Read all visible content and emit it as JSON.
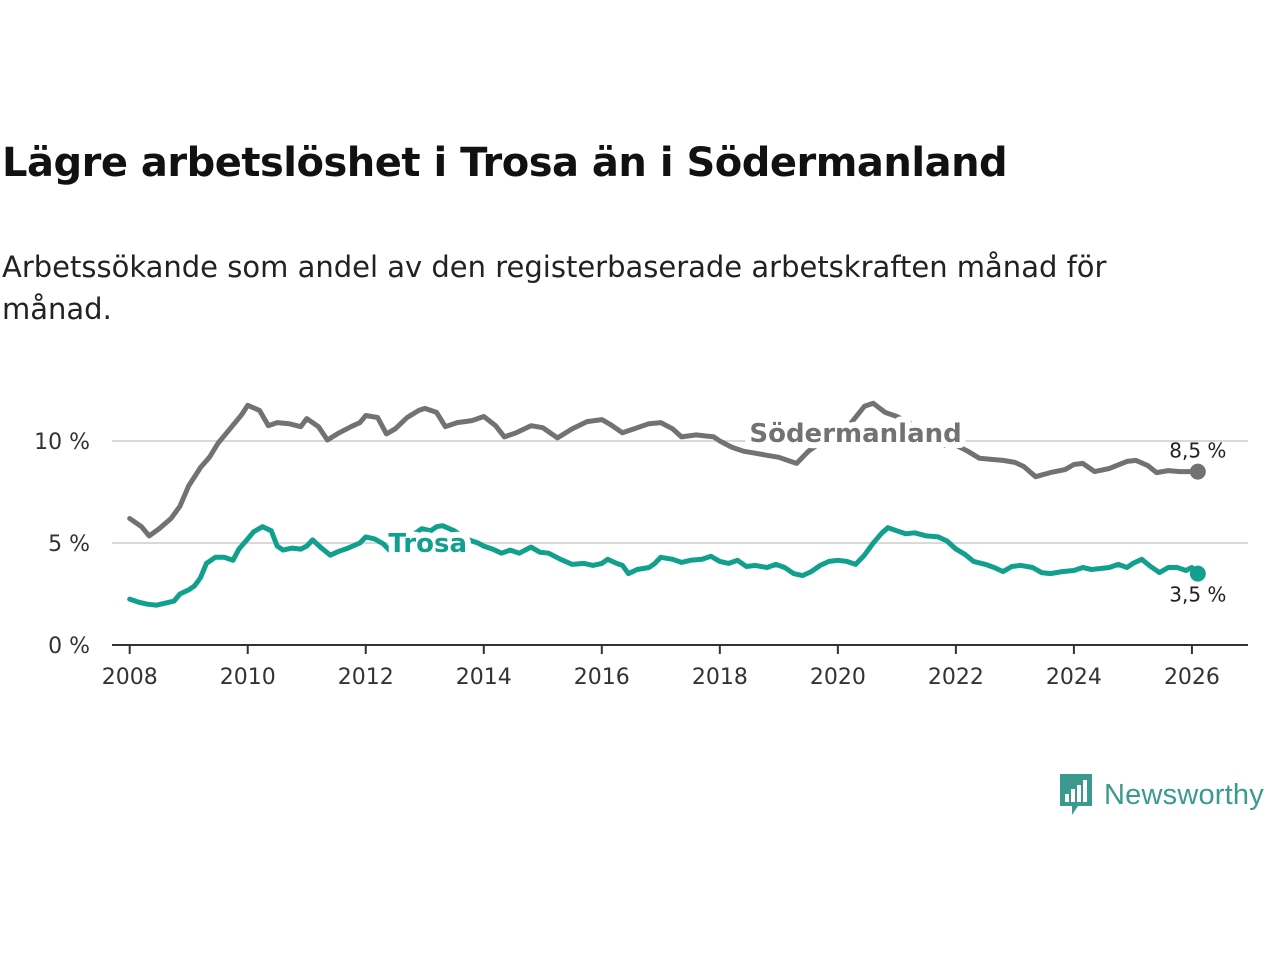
{
  "header": {
    "title": "Lägre arbetslöshet i Trosa än i Södermanland",
    "subtitle": "Arbetssökande som andel av den registerbaserade arbetskraften månad för månad."
  },
  "brand": {
    "name": "Newsworthy",
    "color": "#3b9a8e",
    "icon": "newsworthy-logo-icon"
  },
  "chart_data": {
    "type": "line",
    "title": "",
    "xlabel": "",
    "ylabel": "",
    "xlim": [
      2007.7,
      2026.95
    ],
    "ylim": [
      0,
      12.5
    ],
    "x_ticks": [
      2008,
      2010,
      2012,
      2014,
      2016,
      2018,
      2020,
      2022,
      2024,
      2026
    ],
    "x_tick_labels": [
      "2008",
      "2010",
      "2012",
      "2014",
      "2016",
      "2018",
      "2020",
      "2022",
      "2024",
      "2026"
    ],
    "y_ticks": [
      0,
      5,
      10
    ],
    "y_tick_labels": [
      "0 %",
      "5 %",
      "10 %"
    ],
    "grid": "horizontal",
    "series": [
      {
        "name": "Södermanland",
        "color": "#727272",
        "end_label": "8,5 %",
        "points": [
          [
            2008.0,
            6.2
          ],
          [
            2008.2,
            5.8
          ],
          [
            2008.33,
            5.35
          ],
          [
            2008.5,
            5.7
          ],
          [
            2008.7,
            6.2
          ],
          [
            2008.85,
            6.8
          ],
          [
            2009.0,
            7.8
          ],
          [
            2009.2,
            8.7
          ],
          [
            2009.35,
            9.2
          ],
          [
            2009.5,
            9.9
          ],
          [
            2009.7,
            10.6
          ],
          [
            2009.9,
            11.3
          ],
          [
            2010.0,
            11.75
          ],
          [
            2010.2,
            11.5
          ],
          [
            2010.35,
            10.75
          ],
          [
            2010.5,
            10.9
          ],
          [
            2010.7,
            10.85
          ],
          [
            2010.9,
            10.7
          ],
          [
            2011.0,
            11.1
          ],
          [
            2011.2,
            10.7
          ],
          [
            2011.35,
            10.05
          ],
          [
            2011.55,
            10.4
          ],
          [
            2011.75,
            10.7
          ],
          [
            2011.9,
            10.9
          ],
          [
            2012.0,
            11.25
          ],
          [
            2012.2,
            11.15
          ],
          [
            2012.35,
            10.35
          ],
          [
            2012.5,
            10.6
          ],
          [
            2012.7,
            11.15
          ],
          [
            2012.9,
            11.5
          ],
          [
            2013.0,
            11.6
          ],
          [
            2013.2,
            11.4
          ],
          [
            2013.35,
            10.7
          ],
          [
            2013.55,
            10.9
          ],
          [
            2013.8,
            11.0
          ],
          [
            2014.0,
            11.2
          ],
          [
            2014.2,
            10.75
          ],
          [
            2014.35,
            10.2
          ],
          [
            2014.55,
            10.4
          ],
          [
            2014.8,
            10.75
          ],
          [
            2015.0,
            10.65
          ],
          [
            2015.25,
            10.15
          ],
          [
            2015.5,
            10.6
          ],
          [
            2015.75,
            10.95
          ],
          [
            2016.0,
            11.05
          ],
          [
            2016.15,
            10.8
          ],
          [
            2016.35,
            10.4
          ],
          [
            2016.55,
            10.6
          ],
          [
            2016.8,
            10.85
          ],
          [
            2017.0,
            10.9
          ],
          [
            2017.2,
            10.6
          ],
          [
            2017.35,
            10.2
          ],
          [
            2017.6,
            10.3
          ],
          [
            2017.9,
            10.2
          ],
          [
            2018.0,
            10.0
          ],
          [
            2018.2,
            9.7
          ],
          [
            2018.4,
            9.5
          ],
          [
            2018.6,
            9.4
          ],
          [
            2018.8,
            9.3
          ],
          [
            2019.0,
            9.2
          ],
          [
            2019.2,
            9.0
          ],
          [
            2019.3,
            8.9
          ],
          [
            2019.5,
            9.5
          ],
          [
            2019.7,
            9.9
          ],
          [
            2020.0,
            10.0
          ],
          [
            2020.2,
            10.8
          ],
          [
            2020.45,
            11.7
          ],
          [
            2020.6,
            11.85
          ],
          [
            2020.8,
            11.4
          ],
          [
            2021.0,
            11.2
          ],
          [
            2021.2,
            10.9
          ],
          [
            2021.45,
            10.4
          ],
          [
            2021.7,
            9.8
          ],
          [
            2022.0,
            9.8
          ],
          [
            2022.2,
            9.5
          ],
          [
            2022.4,
            9.15
          ],
          [
            2022.6,
            9.1
          ],
          [
            2022.8,
            9.05
          ],
          [
            2023.0,
            8.95
          ],
          [
            2023.15,
            8.75
          ],
          [
            2023.35,
            8.25
          ],
          [
            2023.6,
            8.45
          ],
          [
            2023.85,
            8.6
          ],
          [
            2024.0,
            8.85
          ],
          [
            2024.15,
            8.9
          ],
          [
            2024.35,
            8.5
          ],
          [
            2024.6,
            8.65
          ],
          [
            2024.9,
            9.0
          ],
          [
            2025.05,
            9.05
          ],
          [
            2025.25,
            8.8
          ],
          [
            2025.4,
            8.45
          ],
          [
            2025.6,
            8.55
          ],
          [
            2025.8,
            8.5
          ],
          [
            2026.1,
            8.5
          ]
        ]
      },
      {
        "name": "Trosa",
        "color": "#12a08e",
        "end_label": "3,5 %",
        "points": [
          [
            2008.0,
            2.25
          ],
          [
            2008.15,
            2.1
          ],
          [
            2008.3,
            2.0
          ],
          [
            2008.45,
            1.95
          ],
          [
            2008.6,
            2.05
          ],
          [
            2008.75,
            2.15
          ],
          [
            2008.85,
            2.5
          ],
          [
            2009.0,
            2.7
          ],
          [
            2009.1,
            2.9
          ],
          [
            2009.2,
            3.3
          ],
          [
            2009.3,
            4.0
          ],
          [
            2009.45,
            4.3
          ],
          [
            2009.6,
            4.3
          ],
          [
            2009.75,
            4.15
          ],
          [
            2009.85,
            4.7
          ],
          [
            2010.0,
            5.2
          ],
          [
            2010.1,
            5.55
          ],
          [
            2010.25,
            5.8
          ],
          [
            2010.4,
            5.6
          ],
          [
            2010.5,
            4.85
          ],
          [
            2010.6,
            4.65
          ],
          [
            2010.75,
            4.75
          ],
          [
            2010.9,
            4.7
          ],
          [
            2011.0,
            4.85
          ],
          [
            2011.1,
            5.15
          ],
          [
            2011.25,
            4.75
          ],
          [
            2011.4,
            4.4
          ],
          [
            2011.55,
            4.6
          ],
          [
            2011.7,
            4.75
          ],
          [
            2011.9,
            5.0
          ],
          [
            2012.0,
            5.3
          ],
          [
            2012.15,
            5.2
          ],
          [
            2012.3,
            4.95
          ],
          [
            2012.4,
            4.65
          ],
          [
            2012.5,
            4.5
          ],
          [
            2012.65,
            4.75
          ],
          [
            2012.75,
            5.0
          ],
          [
            2012.85,
            5.5
          ],
          [
            2012.95,
            5.7
          ],
          [
            2013.1,
            5.6
          ],
          [
            2013.2,
            5.8
          ],
          [
            2013.3,
            5.85
          ],
          [
            2013.5,
            5.6
          ],
          [
            2013.7,
            5.2
          ],
          [
            2013.9,
            5.0
          ],
          [
            2014.0,
            4.85
          ],
          [
            2014.15,
            4.7
          ],
          [
            2014.3,
            4.5
          ],
          [
            2014.45,
            4.65
          ],
          [
            2014.6,
            4.5
          ],
          [
            2014.8,
            4.8
          ],
          [
            2014.95,
            4.55
          ],
          [
            2015.1,
            4.5
          ],
          [
            2015.3,
            4.2
          ],
          [
            2015.5,
            3.95
          ],
          [
            2015.7,
            4.0
          ],
          [
            2015.85,
            3.9
          ],
          [
            2016.0,
            4.0
          ],
          [
            2016.1,
            4.2
          ],
          [
            2016.25,
            4.0
          ],
          [
            2016.35,
            3.9
          ],
          [
            2016.45,
            3.5
          ],
          [
            2016.6,
            3.7
          ],
          [
            2016.8,
            3.8
          ],
          [
            2016.9,
            4.0
          ],
          [
            2017.0,
            4.3
          ],
          [
            2017.2,
            4.2
          ],
          [
            2017.35,
            4.05
          ],
          [
            2017.5,
            4.15
          ],
          [
            2017.7,
            4.2
          ],
          [
            2017.85,
            4.35
          ],
          [
            2018.0,
            4.1
          ],
          [
            2018.15,
            4.0
          ],
          [
            2018.3,
            4.15
          ],
          [
            2018.45,
            3.85
          ],
          [
            2018.6,
            3.9
          ],
          [
            2018.8,
            3.8
          ],
          [
            2018.95,
            3.95
          ],
          [
            2019.1,
            3.8
          ],
          [
            2019.25,
            3.5
          ],
          [
            2019.4,
            3.4
          ],
          [
            2019.55,
            3.6
          ],
          [
            2019.7,
            3.9
          ],
          [
            2019.85,
            4.1
          ],
          [
            2020.0,
            4.15
          ],
          [
            2020.15,
            4.1
          ],
          [
            2020.3,
            3.95
          ],
          [
            2020.45,
            4.4
          ],
          [
            2020.6,
            5.0
          ],
          [
            2020.75,
            5.5
          ],
          [
            2020.85,
            5.75
          ],
          [
            2021.0,
            5.6
          ],
          [
            2021.15,
            5.45
          ],
          [
            2021.3,
            5.5
          ],
          [
            2021.5,
            5.35
          ],
          [
            2021.7,
            5.3
          ],
          [
            2021.85,
            5.1
          ],
          [
            2022.0,
            4.7
          ],
          [
            2022.15,
            4.45
          ],
          [
            2022.3,
            4.1
          ],
          [
            2022.5,
            3.95
          ],
          [
            2022.65,
            3.8
          ],
          [
            2022.8,
            3.6
          ],
          [
            2022.95,
            3.85
          ],
          [
            2023.1,
            3.9
          ],
          [
            2023.3,
            3.8
          ],
          [
            2023.45,
            3.55
          ],
          [
            2023.6,
            3.5
          ],
          [
            2023.8,
            3.6
          ],
          [
            2024.0,
            3.65
          ],
          [
            2024.15,
            3.8
          ],
          [
            2024.3,
            3.7
          ],
          [
            2024.45,
            3.75
          ],
          [
            2024.6,
            3.8
          ],
          [
            2024.75,
            3.95
          ],
          [
            2024.9,
            3.8
          ],
          [
            2025.0,
            4.0
          ],
          [
            2025.15,
            4.2
          ],
          [
            2025.3,
            3.85
          ],
          [
            2025.45,
            3.55
          ],
          [
            2025.6,
            3.8
          ],
          [
            2025.75,
            3.8
          ],
          [
            2025.9,
            3.65
          ],
          [
            2026.0,
            3.8
          ],
          [
            2026.1,
            3.5
          ]
        ]
      }
    ],
    "annotations": [
      {
        "text": "Södermanland",
        "series": "Södermanland"
      },
      {
        "text": "Trosa",
        "series": "Trosa"
      }
    ]
  }
}
